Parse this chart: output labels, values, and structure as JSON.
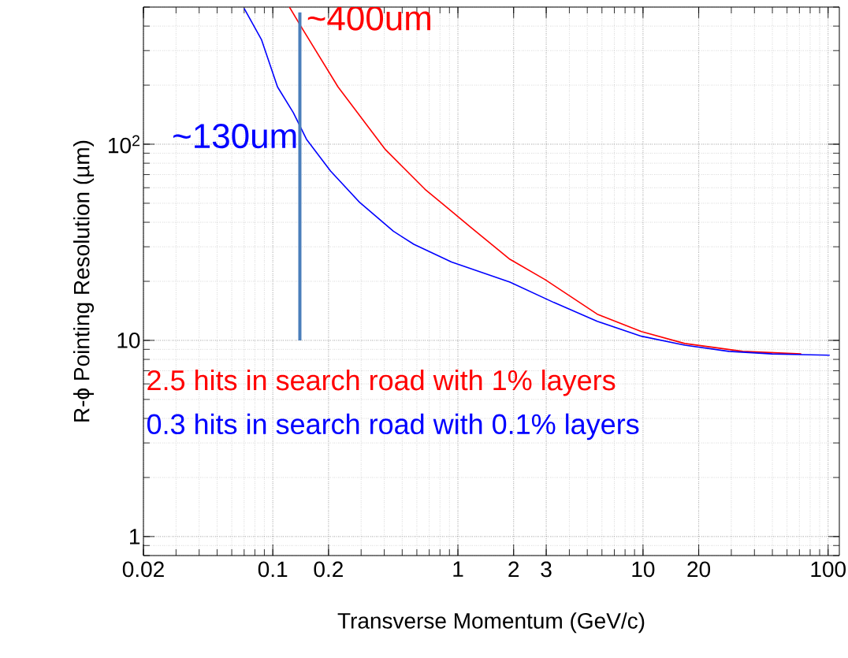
{
  "chart_data": {
    "type": "line",
    "xlabel": "Transverse Momentum (GeV/c)",
    "ylabel": "R-ϕ Pointing Resolution (µm)",
    "log": "xy",
    "grid": true,
    "xlim": [
      0.02,
      115
    ],
    "ylim": [
      0.8,
      500
    ],
    "xticks": [
      0.02,
      0.1,
      0.2,
      1,
      2,
      3,
      10,
      20,
      100
    ],
    "yticks": [
      1,
      10,
      {
        "value": 100,
        "label": "10$^{2}$"
      }
    ],
    "series": [
      {
        "name": "2.5 hits in search road with 1% layers",
        "color": "#ff0000",
        "x": [
          0.123,
          0.142,
          0.225,
          0.406,
          0.663,
          0.924,
          1.19,
          1.91,
          2.96,
          5.66,
          9.8,
          16.8,
          34.6,
          71.6
        ],
        "values": [
          500,
          398,
          196,
          93.8,
          59,
          45.5,
          37.3,
          25.9,
          20.4,
          13.6,
          11.1,
          9.64,
          8.79,
          8.53
        ]
      },
      {
        "name": "0.3 hits in search road with 0.1% layers",
        "color": "#0000ff",
        "x": [
          0.07,
          0.087,
          0.106,
          0.129,
          0.152,
          0.205,
          0.294,
          0.448,
          0.578,
          0.924,
          1.91,
          3.3,
          5.66,
          9.8,
          16.8,
          29.1,
          49.9,
          102
        ],
        "values": [
          492,
          340,
          196,
          145,
          106,
          73,
          50.6,
          36,
          30.9,
          25.1,
          19.8,
          15.6,
          12.5,
          10.5,
          9.46,
          8.79,
          8.53,
          8.4
        ]
      },
      {
        "color": "#4a7ebb",
        "x": [
          0.14,
          0.14
        ],
        "values": [
          470,
          10
        ]
      }
    ],
    "annotations": [
      {
        "text": "~400um",
        "x": 0.14,
        "y": 400
      },
      {
        "text": "~130um",
        "x": 0.14,
        "y": 130
      }
    ]
  }
}
